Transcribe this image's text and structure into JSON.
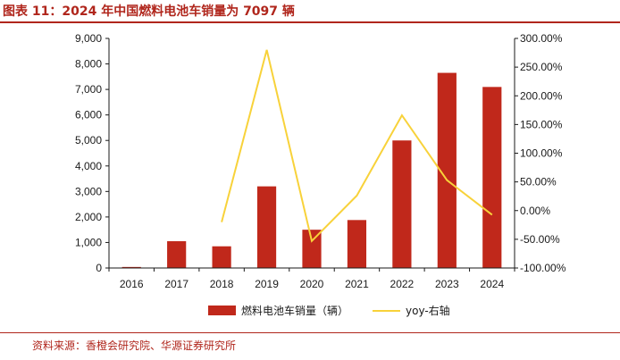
{
  "figure": {
    "title": "图表 11：2024 年中国燃料电池车销量为 7097 辆",
    "source": "资料来源：香橙会研究院、华源证券研究所"
  },
  "colors": {
    "bar": "#c0281b",
    "line": "#f8d23a",
    "accent": "#b0261c"
  },
  "chart_data": {
    "type": "bar",
    "categories": [
      "2016",
      "2017",
      "2018",
      "2019",
      "2020",
      "2021",
      "2022",
      "2023",
      "2024"
    ],
    "series": [
      {
        "name": "燃料电池车销量（辆）",
        "type": "bar",
        "axis": "left",
        "values": [
          40,
          1050,
          850,
          3200,
          1500,
          1880,
          5000,
          7650,
          7097
        ]
      },
      {
        "name": "yoy-右轴",
        "type": "line",
        "axis": "right",
        "values": [
          null,
          null,
          -20.0,
          280.0,
          -53.0,
          26.0,
          166.0,
          53.0,
          -7.2
        ]
      }
    ],
    "y_left": {
      "min": 0,
      "max": 9000,
      "step": 1000,
      "tick_labels": [
        "0",
        "1,000",
        "2,000",
        "3,000",
        "4,000",
        "5,000",
        "6,000",
        "7,000",
        "8,000",
        "9,000"
      ]
    },
    "y_right": {
      "min": -100,
      "max": 300,
      "step": 50,
      "tick_labels": [
        "-100.00%",
        "-50.00%",
        "0.00%",
        "50.00%",
        "100.00%",
        "150.00%",
        "200.00%",
        "250.00%",
        "300.00%"
      ]
    },
    "grid": false,
    "legend": "bottom-center"
  }
}
